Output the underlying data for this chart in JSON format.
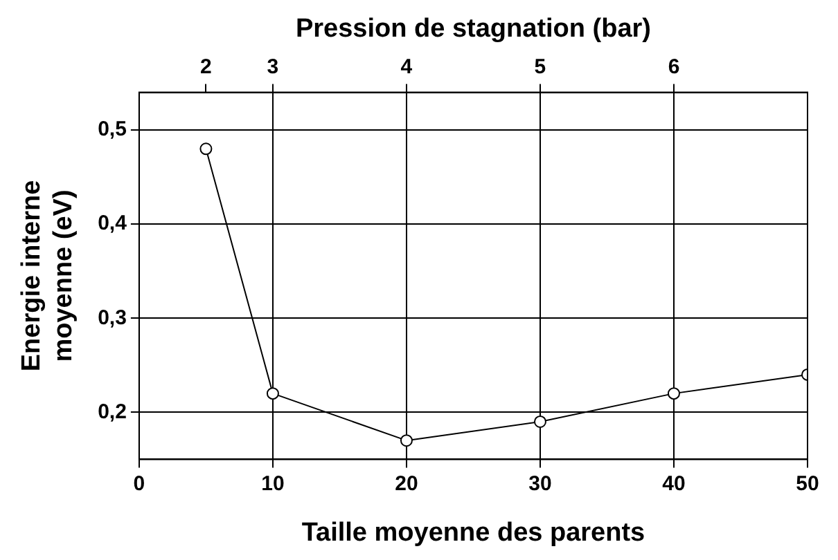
{
  "chart_data": {
    "type": "line",
    "xlabel": "Taille moyenne des parents",
    "ylabel": "Energie interne moyenne (eV)",
    "x2label": "Pression de stagnation (bar)",
    "x": [
      5,
      10,
      20,
      30,
      40,
      50
    ],
    "series": [
      {
        "color": "#000000",
        "values": [
          0.48,
          0.22,
          0.17,
          0.19,
          0.22,
          0.24
        ]
      }
    ],
    "xlim": [
      0,
      50
    ],
    "xticks": [
      0,
      10,
      20,
      30,
      40,
      50
    ],
    "annotations": [
      {
        "text": "2",
        "x": 5
      },
      {
        "text": "3",
        "x": 10
      },
      {
        "text": "4",
        "x": 20
      },
      {
        "text": "5",
        "x": 30
      },
      {
        "text": "6",
        "x": 40
      }
    ],
    "ylim": [
      0.15,
      0.54
    ],
    "yticks": [
      {
        "value": 0.2,
        "label": "0,2"
      },
      {
        "value": 0.3,
        "label": "0,3"
      },
      {
        "value": 0.4,
        "label": "0,4"
      },
      {
        "value": 0.5,
        "label": "0,5"
      }
    ],
    "grid": true,
    "legend": false,
    "marker": "circle",
    "line_style": "solid"
  }
}
